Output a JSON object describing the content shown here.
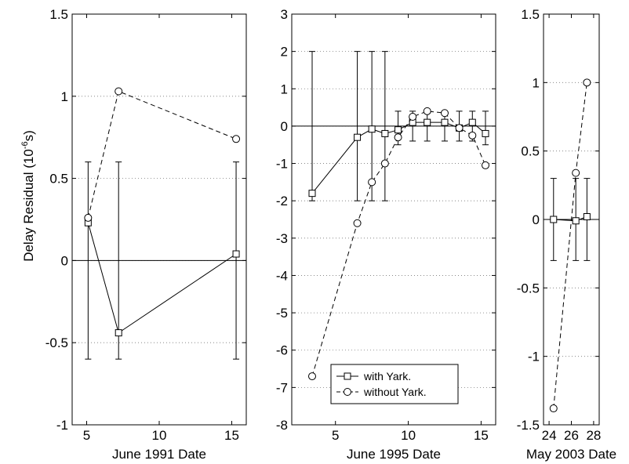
{
  "figure": {
    "ylabel_main": "Delay Residual (10",
    "ylabel_exp": "-6",
    "ylabel_unit": "s)"
  },
  "chart_data": [
    {
      "type": "line",
      "xlabel": "June 1991 Date",
      "xlim": [
        4,
        16
      ],
      "ylim": [
        -1,
        1.5
      ],
      "xticks": [
        5,
        10,
        15
      ],
      "yticks": [
        -1,
        -0.5,
        0,
        0.5,
        1,
        1.5
      ],
      "ytick_labels": [
        "-1",
        "-0.5",
        "0",
        "0.5",
        "1",
        "1.5"
      ],
      "grid": "horizontal dotted",
      "series": [
        {
          "key": "with",
          "style": "solid",
          "marker": "square",
          "x": [
            5.1,
            7.2,
            15.3
          ],
          "y": [
            0.23,
            -0.44,
            0.04
          ],
          "err_lo": [
            -0.6,
            -0.6,
            -0.6
          ],
          "err_hi": [
            0.6,
            0.6,
            0.6
          ]
        },
        {
          "key": "without",
          "style": "dashed",
          "marker": "circle",
          "x": [
            5.1,
            7.2,
            15.3
          ],
          "y": [
            0.26,
            1.03,
            0.74
          ]
        }
      ]
    },
    {
      "type": "line",
      "xlabel": "June 1995 Date",
      "xlim": [
        2,
        16
      ],
      "ylim": [
        -8,
        3
      ],
      "xticks": [
        5,
        10,
        15
      ],
      "yticks": [
        -8,
        -7,
        -6,
        -5,
        -4,
        -3,
        -2,
        -1,
        0,
        1,
        2,
        3
      ],
      "ytick_labels": [
        "-8",
        "-7",
        "-6",
        "-5",
        "-4",
        "-3",
        "-2",
        "-1",
        "0",
        "1",
        "2",
        "3"
      ],
      "grid": "horizontal dotted",
      "legend": {
        "position": "bottom-center",
        "entries": [
          {
            "key": "with",
            "label": "with Yark."
          },
          {
            "key": "without",
            "label": "without Yark."
          }
        ]
      },
      "series": [
        {
          "key": "with",
          "style": "solid",
          "marker": "square",
          "x": [
            3.4,
            6.5,
            7.5,
            8.4,
            9.3,
            10.3,
            11.3,
            12.5,
            13.5,
            14.4,
            15.3
          ],
          "y": [
            -1.8,
            -0.3,
            -0.08,
            -0.2,
            -0.1,
            0.1,
            0.1,
            0.1,
            -0.05,
            0.1,
            -0.2
          ],
          "err_lo": [
            -2,
            -2,
            -2,
            -2,
            -0.5,
            -0.4,
            -0.4,
            -0.4,
            -0.4,
            -0.4,
            -0.5
          ],
          "err_hi": [
            2,
            2,
            2,
            2,
            0.4,
            0.4,
            0.4,
            0.4,
            0.4,
            0.4,
            0.4
          ]
        },
        {
          "key": "without",
          "style": "dashed",
          "marker": "circle",
          "x": [
            3.4,
            6.5,
            7.5,
            8.4,
            9.3,
            10.3,
            11.3,
            12.5,
            13.5,
            14.4,
            15.3
          ],
          "y": [
            -6.7,
            -2.6,
            -1.5,
            -1.0,
            -0.3,
            0.25,
            0.4,
            0.35,
            -0.05,
            -0.25,
            -1.05
          ]
        }
      ]
    },
    {
      "type": "line",
      "xlabel": "May 2003 Date",
      "xlim": [
        23.5,
        28.5
      ],
      "ylim": [
        -1.5,
        1.5
      ],
      "xticks": [
        24,
        26,
        28
      ],
      "yticks": [
        -1.5,
        -1,
        -0.5,
        0,
        0.5,
        1,
        1.5
      ],
      "ytick_labels": [
        "-1.5",
        "-1",
        "-0.5",
        "0",
        "0.5",
        "1",
        "1.5"
      ],
      "grid": "horizontal dotted",
      "series": [
        {
          "key": "with",
          "style": "solid",
          "marker": "square",
          "x": [
            24.4,
            26.4,
            27.4
          ],
          "y": [
            0.0,
            -0.01,
            0.02
          ],
          "err_lo": [
            -0.3,
            -0.3,
            -0.3
          ],
          "err_hi": [
            0.3,
            0.3,
            0.3
          ]
        },
        {
          "key": "without",
          "style": "dashed",
          "marker": "circle",
          "x": [
            24.4,
            26.4,
            27.4
          ],
          "y": [
            -1.38,
            0.34,
            1.0
          ]
        }
      ]
    }
  ]
}
